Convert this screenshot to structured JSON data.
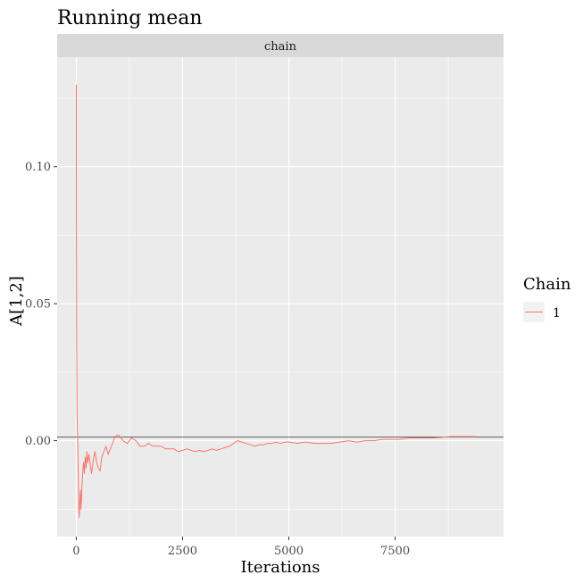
{
  "chart_data": {
    "type": "line",
    "title": "Running mean",
    "facet_strip": "chain",
    "xlabel": "Iterations",
    "ylabel": "A[1,2]",
    "xlim": [
      -450,
      10050
    ],
    "ylim": [
      -0.035,
      0.14
    ],
    "x_ticks": [
      0,
      2500,
      5000,
      7500
    ],
    "x_tick_labels": [
      "0",
      "2500",
      "5000",
      "7500"
    ],
    "y_ticks": [
      0.0,
      0.05,
      0.1
    ],
    "y_tick_labels": [
      "0.00",
      "0.05",
      "0.10"
    ],
    "reference_line_y": 0.0013,
    "grid": true,
    "legend": {
      "title": "Chain",
      "position": "right",
      "entries": [
        "1"
      ]
    },
    "colors": {
      "series": "#F8766D",
      "panel": "#EBEBEB",
      "grid": "#FFFFFF",
      "strip": "#D9D9D9",
      "reference_line": "#4d4d4d"
    },
    "series": [
      {
        "name": "1",
        "x": [
          1,
          2,
          5,
          8,
          12,
          18,
          25,
          30,
          35,
          40,
          45,
          50,
          55,
          60,
          70,
          80,
          90,
          100,
          110,
          120,
          135,
          150,
          170,
          190,
          210,
          230,
          250,
          270,
          300,
          330,
          360,
          400,
          440,
          480,
          520,
          560,
          600,
          650,
          700,
          750,
          800,
          850,
          900,
          950,
          1000,
          1050,
          1100,
          1200,
          1300,
          1400,
          1500,
          1600,
          1700,
          1800,
          1900,
          2000,
          2100,
          2200,
          2300,
          2400,
          2500,
          2600,
          2700,
          2800,
          2900,
          3000,
          3100,
          3200,
          3300,
          3400,
          3500,
          3600,
          3700,
          3800,
          3900,
          4000,
          4100,
          4200,
          4300,
          4400,
          4500,
          4600,
          4700,
          4800,
          4900,
          5000,
          5200,
          5400,
          5600,
          5800,
          6000,
          6200,
          6400,
          6600,
          6800,
          7000,
          7200,
          7400,
          7600,
          7800,
          8000,
          8200,
          8400,
          8600,
          8800,
          9000,
          9200,
          9400
        ],
        "values": [
          0.13,
          0.095,
          0.06,
          0.04,
          0.03,
          0.01,
          0.004,
          0.002,
          0.0,
          -0.005,
          -0.01,
          -0.015,
          -0.02,
          -0.025,
          -0.028,
          -0.024,
          -0.02,
          -0.018,
          -0.025,
          -0.022,
          -0.016,
          -0.012,
          -0.008,
          -0.012,
          -0.006,
          -0.01,
          -0.004,
          -0.008,
          -0.005,
          -0.009,
          -0.012,
          -0.007,
          -0.004,
          -0.008,
          -0.01,
          -0.011,
          -0.006,
          -0.004,
          -0.002,
          -0.005,
          -0.003,
          -0.001,
          0.001,
          0.002,
          0.002,
          0.001,
          0.0,
          -0.001,
          0.001,
          0.0,
          -0.002,
          -0.002,
          -0.001,
          -0.002,
          -0.002,
          -0.002,
          -0.003,
          -0.003,
          -0.003,
          -0.004,
          -0.0035,
          -0.003,
          -0.0035,
          -0.004,
          -0.0035,
          -0.004,
          -0.0035,
          -0.003,
          -0.0035,
          -0.003,
          -0.0025,
          -0.002,
          -0.001,
          0.0,
          -0.0005,
          -0.001,
          -0.0015,
          -0.002,
          -0.0015,
          -0.0015,
          -0.001,
          -0.001,
          -0.0005,
          -0.001,
          -0.0005,
          -0.0005,
          -0.001,
          -0.0005,
          -0.001,
          -0.001,
          -0.001,
          -0.0005,
          0.0,
          -0.0005,
          0.0,
          0.0,
          0.0005,
          0.0005,
          0.0005,
          0.001,
          0.001,
          0.001,
          0.001,
          0.0012,
          0.0015,
          0.0015,
          0.0015,
          0.0015
        ]
      }
    ]
  }
}
